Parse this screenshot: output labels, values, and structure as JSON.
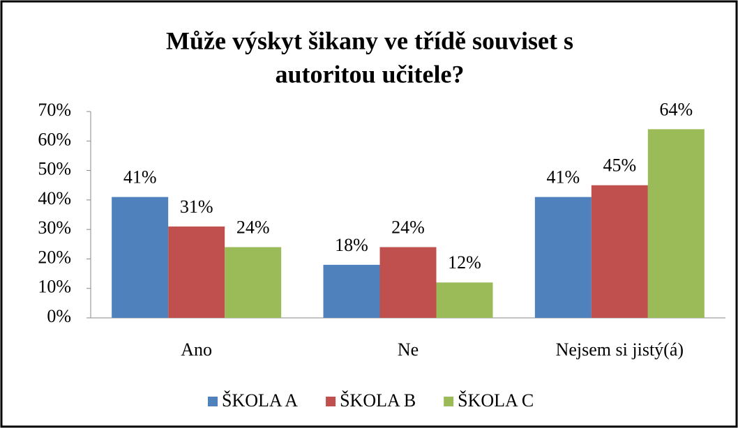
{
  "chart_data": {
    "type": "bar",
    "title": [
      "Může výskyt šikany ve třídě souviset s",
      "autoritou učitele?"
    ],
    "categories": [
      "Ano",
      "Ne",
      "Nejsem si jistý(á)"
    ],
    "series": [
      {
        "name": "ŠKOLA A",
        "color": "#4f81bd",
        "values": [
          41,
          18,
          41
        ],
        "value_labels": [
          "41%",
          "18%",
          "41%"
        ]
      },
      {
        "name": "ŠKOLA B",
        "color": "#c0504d",
        "values": [
          31,
          24,
          45
        ],
        "value_labels": [
          "31%",
          "24%",
          "45%"
        ]
      },
      {
        "name": "ŠKOLA C",
        "color": "#9bbb59",
        "values": [
          24,
          12,
          64
        ],
        "value_labels": [
          "24%",
          "12%",
          "64%"
        ]
      }
    ],
    "ylim": [
      0,
      70
    ],
    "yticks": [
      {
        "value": 0,
        "label": "0%"
      },
      {
        "value": 10,
        "label": "10%"
      },
      {
        "value": 20,
        "label": "20%"
      },
      {
        "value": 30,
        "label": "30%"
      },
      {
        "value": 40,
        "label": "40%"
      },
      {
        "value": 50,
        "label": "50%"
      },
      {
        "value": 60,
        "label": "60%"
      },
      {
        "value": 70,
        "label": "70%"
      }
    ],
    "grid": false,
    "legend": "bottom"
  }
}
